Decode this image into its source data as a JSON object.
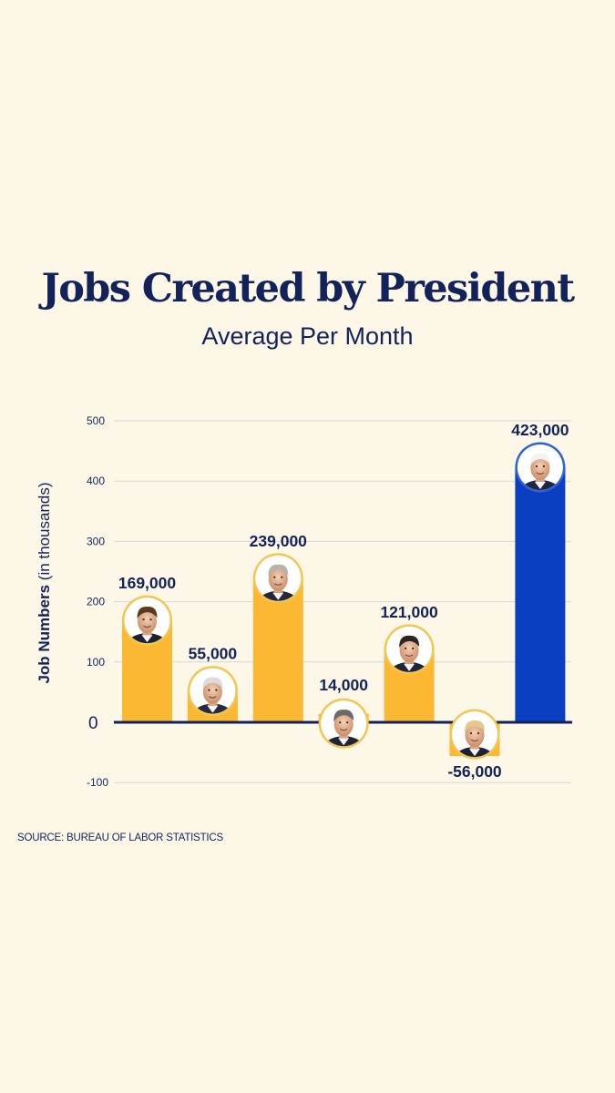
{
  "header": {
    "title": "Jobs Created by President",
    "subtitle": "Average Per Month"
  },
  "footer": {
    "source": "SOURCE: BUREAU OF LABOR STATISTICS"
  },
  "colors": {
    "background": "#fdf7e8",
    "text": "#13235a",
    "bar_default": "#fbb833",
    "bar_highlight": "#0a3fc2",
    "grid": "#d8d6da",
    "axis": "#13235a"
  },
  "chart_data": {
    "type": "bar",
    "title": "Jobs Created by President",
    "subtitle": "Average Per Month",
    "ylabel_bold": "Job Numbers",
    "ylabel_rest": "(in thousands)",
    "ylim": [
      -100,
      500
    ],
    "yticks": [
      -100,
      0,
      100,
      200,
      300,
      400,
      500
    ],
    "ytick_labels": [
      "-100",
      "0",
      "100",
      "200",
      "300",
      "400",
      "500"
    ],
    "grid": true,
    "categories": [
      "",
      "",
      "",
      "",
      "",
      "",
      ""
    ],
    "values": [
      169,
      55,
      239,
      14,
      121,
      -56,
      423
    ],
    "value_labels": [
      "169,000",
      "55,000",
      "239,000",
      "14,000",
      "121,000",
      "-56,000",
      "423,000"
    ],
    "highlight_index": 6
  }
}
